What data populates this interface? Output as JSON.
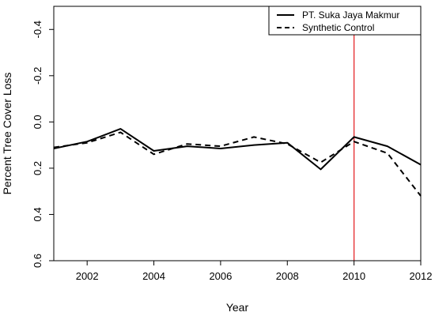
{
  "chart_data": {
    "type": "line",
    "xlabel": "Year",
    "ylabel": "Percent Tree Cover Loss",
    "xlim": [
      2001,
      2012
    ],
    "ylim": [
      0.6,
      -0.5
    ],
    "y_inverted": true,
    "x_ticks": [
      2002,
      2004,
      2006,
      2008,
      2010,
      2012
    ],
    "x_tick_labels": [
      "2002",
      "2004",
      "2006",
      "2008",
      "2010",
      "2012"
    ],
    "y_ticks": [
      -0.4,
      -0.2,
      0.0,
      0.2,
      0.4,
      0.6
    ],
    "y_tick_labels": [
      "-0.4",
      "-0.2",
      "0.0",
      "0.2",
      "0.4",
      "0.6"
    ],
    "grid": false,
    "legend_position": "top-right",
    "x": [
      2001,
      2002,
      2003,
      2004,
      2005,
      2006,
      2007,
      2008,
      2009,
      2010,
      2011,
      2012
    ],
    "series": [
      {
        "name": "PT. Suka Jaya Makmur",
        "style": "solid",
        "color": "#000000",
        "values": [
          0.115,
          0.085,
          0.03,
          0.125,
          0.105,
          0.115,
          0.1,
          0.09,
          0.205,
          0.065,
          0.105,
          0.185
        ]
      },
      {
        "name": "Synthetic Control",
        "style": "dashed",
        "color": "#000000",
        "values": [
          0.11,
          0.09,
          0.045,
          0.14,
          0.095,
          0.105,
          0.065,
          0.095,
          0.175,
          0.085,
          0.135,
          0.32
        ]
      }
    ],
    "reference_lines": [
      {
        "x": 2010,
        "color": "#e31a1c"
      }
    ]
  }
}
